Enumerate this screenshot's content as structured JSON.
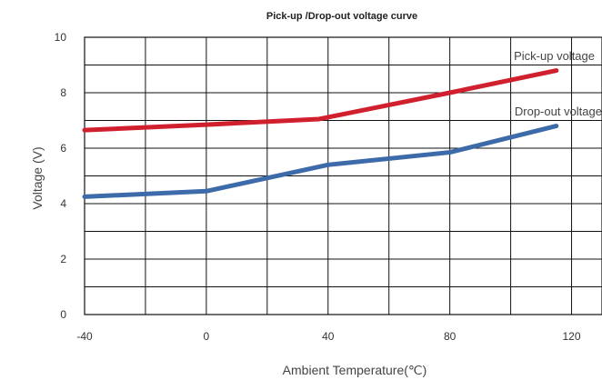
{
  "chart_data": {
    "type": "line",
    "title": "Pick-up /Drop-out voltage curve",
    "xlabel": "Ambient Temperature(℃)",
    "ylabel": "Voltage (V)",
    "xlim": [
      -40,
      130
    ],
    "ylim": [
      0,
      10
    ],
    "grid": true,
    "x_ticks": [
      -40,
      0,
      40,
      80,
      120
    ],
    "y_ticks": [
      0,
      2,
      4,
      6,
      8,
      10
    ],
    "series": [
      {
        "name": "Pick-up voltage",
        "color": "#d0202e",
        "x": [
          -40,
          0,
          37,
          80,
          115
        ],
        "y": [
          6.65,
          6.85,
          7.05,
          8.0,
          8.8
        ]
      },
      {
        "name": "Drop-out voltage",
        "color": "#3d6aa8",
        "x": [
          -40,
          0,
          40,
          80,
          115
        ],
        "y": [
          4.25,
          4.45,
          5.4,
          5.85,
          6.8
        ]
      }
    ]
  }
}
